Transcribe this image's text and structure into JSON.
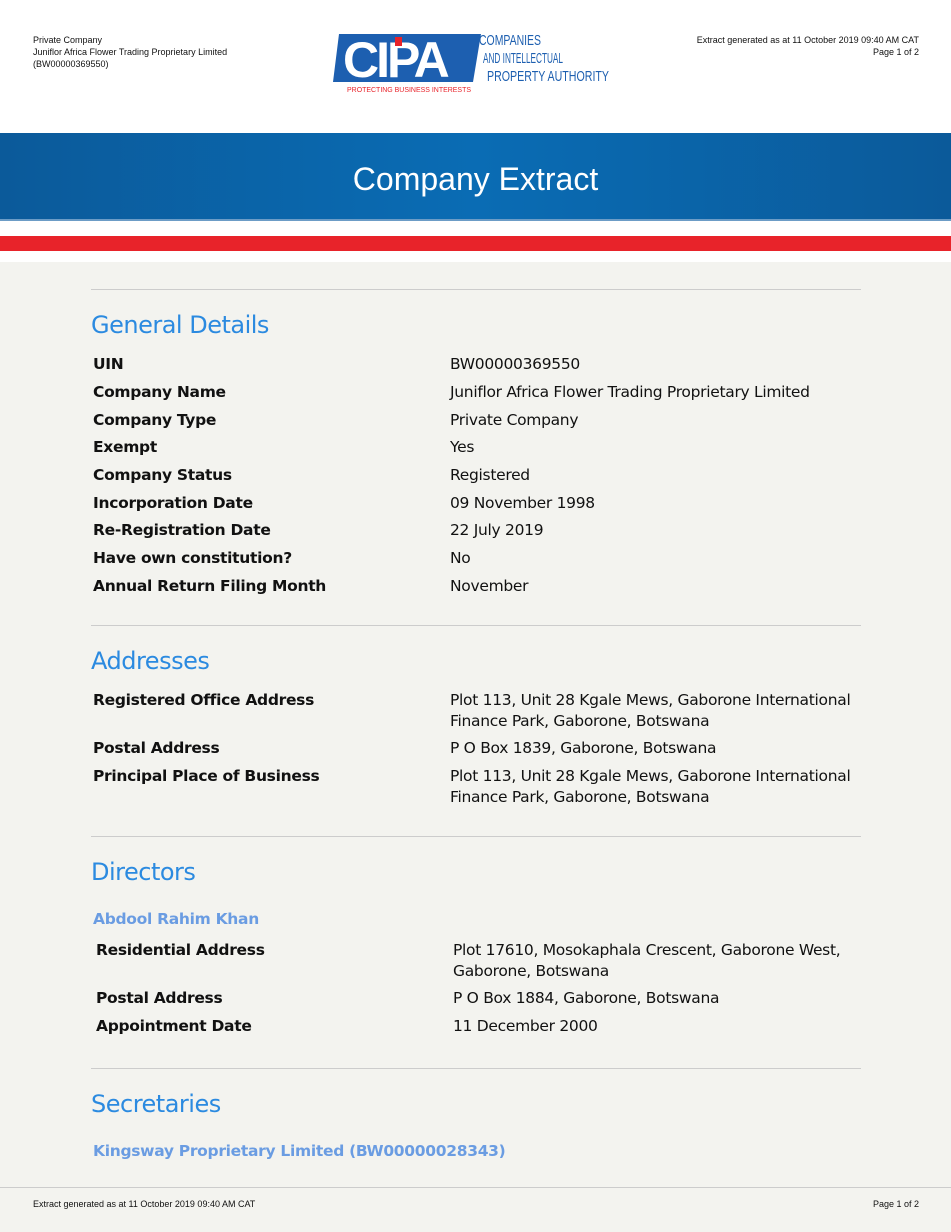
{
  "header": {
    "left": [
      "Private Company",
      "Juniflor Africa Flower Trading Proprietary Limited",
      "(BW00000369550)"
    ],
    "right": [
      "Extract generated as at 11 October 2019 09:40 AM CAT",
      "Page 1 of 2"
    ],
    "logo": {
      "mark": "CIPA",
      "name": [
        "COMPANIES",
        "AND INTELLECTUAL",
        "PROPERTY AUTHORITY"
      ],
      "tagline": "PROTECTING BUSINESS INTERESTS"
    }
  },
  "banner": {
    "title": "Company Extract"
  },
  "general": {
    "title": "General Details",
    "rows": [
      [
        "UIN",
        "BW00000369550"
      ],
      [
        "Company Name",
        "Juniflor Africa Flower Trading Proprietary Limited"
      ],
      [
        "Company Type",
        "Private Company"
      ],
      [
        "Exempt",
        "Yes"
      ],
      [
        "Company Status",
        "Registered"
      ],
      [
        "Incorporation Date",
        "09 November 1998"
      ],
      [
        "Re-Registration Date",
        "22 July 2019"
      ],
      [
        "Have own constitution?",
        "No"
      ],
      [
        "Annual Return Filing Month",
        "November"
      ]
    ]
  },
  "addresses": {
    "title": "Addresses",
    "rows": [
      [
        "Registered Office Address",
        "Plot 113, Unit 28 Kgale Mews, Gaborone International Finance Park, Gaborone, Botswana"
      ],
      [
        "Postal Address",
        "P O Box 1839, Gaborone, Botswana"
      ],
      [
        "Principal Place of Business",
        "Plot 113, Unit 28 Kgale Mews, Gaborone International Finance Park, Gaborone, Botswana"
      ]
    ]
  },
  "directors": {
    "title": "Directors",
    "name": "Abdool Rahim Khan",
    "rows": [
      [
        "Residential Address",
        "Plot 17610, Mosokaphala Crescent, Gaborone West, Gaborone, Botswana"
      ],
      [
        "Postal Address",
        "P O Box 1884, Gaborone, Botswana"
      ],
      [
        "Appointment Date",
        "11 December 2000"
      ]
    ]
  },
  "secretaries": {
    "title": "Secretaries",
    "name": "Kingsway Proprietary Limited (BW00000028343)"
  },
  "footer": {
    "left": "Extract generated as at 11 October 2019 09:40 AM CAT",
    "right": "Page 1 of 2"
  },
  "colors": {
    "heading": "#2b8ae0",
    "banner": "#0a6cb4",
    "stripe": "#e8232a"
  }
}
